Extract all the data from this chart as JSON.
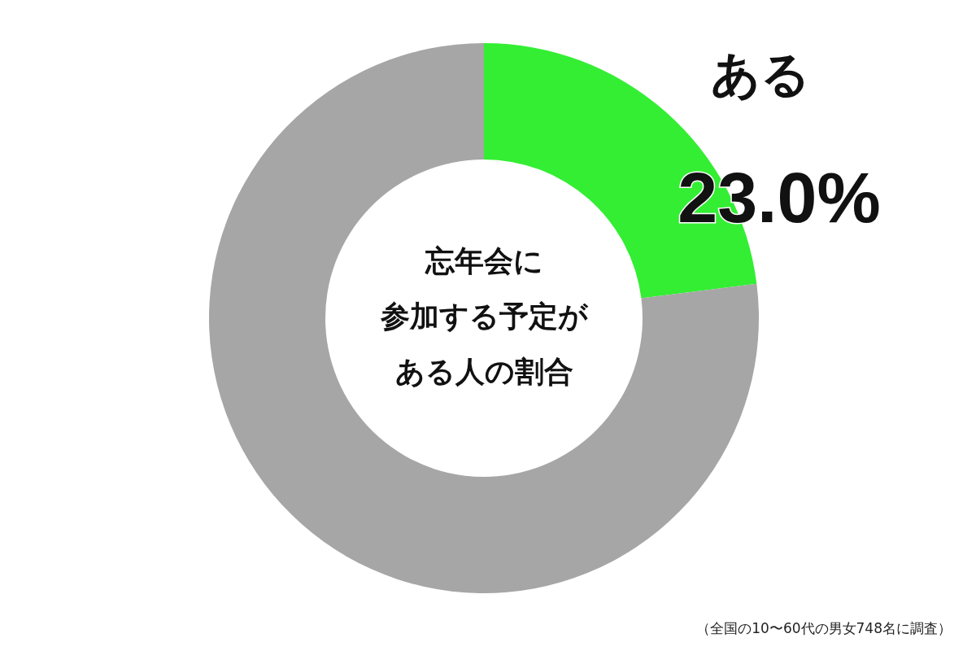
{
  "chart_data": {
    "type": "donut",
    "title": "忘年会に参加する予定がある人の割合",
    "categories": [
      "ある",
      null
    ],
    "values": [
      23.0,
      77.0
    ],
    "colors": [
      "#33ee33",
      "#a6a6a6"
    ],
    "value_labels": [
      "23.0%",
      null
    ],
    "annotations": [
      "（全国の10〜60代の男女748名に調査）"
    ]
  }
}
